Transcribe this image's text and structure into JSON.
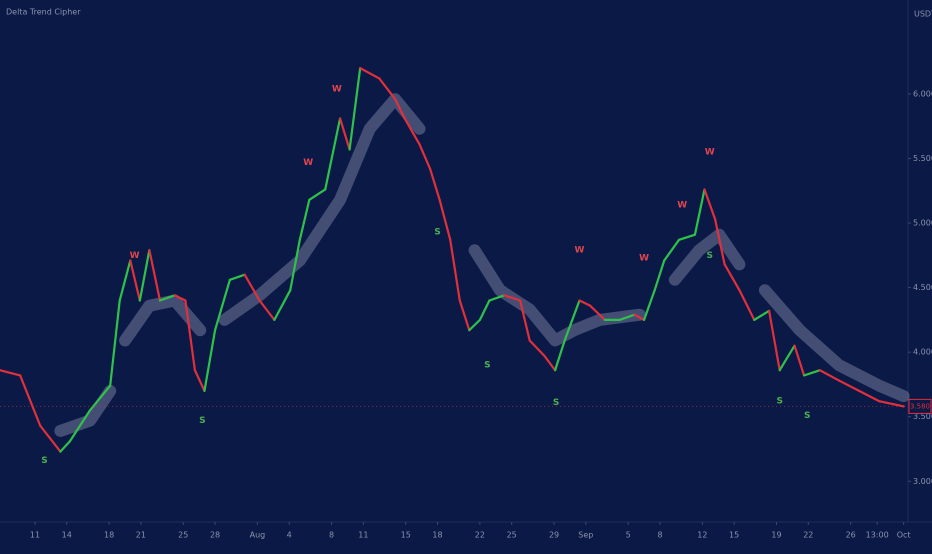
{
  "chart_data": {
    "type": "line",
    "title": "Delta Trend Cipher",
    "unit_label": "USDT",
    "x": [
      6.7,
      8.6,
      10.5,
      12.4,
      13.3,
      15.2,
      17.1,
      18.0,
      19.0,
      19.9,
      20.8,
      21.8,
      23.2,
      24.2,
      25.1,
      26.0,
      27.0,
      28.4,
      29.8,
      31.2,
      32.6,
      34.1,
      35.0,
      35.9,
      37.4,
      38.8,
      39.7,
      40.7,
      42.5,
      44.0,
      44.9,
      46.3,
      47.3,
      48.2,
      49.2,
      50.1,
      51.0,
      52.0,
      52.9,
      54.3,
      55.8,
      56.7,
      58.1,
      59.1,
      60.0,
      61.4,
      62.4,
      63.8,
      65.2,
      66.6,
      67.5,
      68.5,
      69.4,
      70.8,
      72.3,
      73.2,
      74.2,
      75.1,
      76.5,
      77.9,
      79.3,
      80.3,
      81.7,
      82.6,
      84.1,
      85.9,
      87.8,
      89.7,
      92.0
    ],
    "values": [
      3.86,
      3.82,
      3.43,
      3.23,
      3.31,
      3.55,
      3.74,
      4.4,
      4.71,
      4.4,
      4.79,
      4.4,
      4.44,
      4.4,
      3.86,
      3.7,
      4.17,
      4.56,
      4.6,
      4.4,
      4.25,
      4.48,
      4.87,
      5.18,
      5.26,
      5.81,
      5.57,
      6.2,
      6.12,
      5.96,
      5.81,
      5.61,
      5.42,
      5.18,
      4.87,
      4.4,
      4.17,
      4.25,
      4.4,
      4.44,
      4.4,
      4.09,
      3.97,
      3.86,
      4.09,
      4.4,
      4.36,
      4.25,
      4.25,
      4.29,
      4.25,
      4.48,
      4.71,
      4.87,
      4.91,
      5.26,
      5.03,
      4.68,
      4.48,
      4.25,
      4.32,
      3.86,
      4.05,
      3.82,
      3.86,
      3.78,
      3.7,
      3.62,
      3.58
    ],
    "up_color": "#2fc24a",
    "down_color": "#e0303c",
    "ribbon": {
      "color": "#8a90ad",
      "x": [
        12.4,
        15.2,
        17.1,
        null,
        18.5,
        20.8,
        23.2,
        25.6,
        null,
        27.9,
        31.2,
        35.0,
        38.8,
        41.6,
        44.0,
        46.3,
        null,
        51.5,
        53.9,
        56.7,
        59.1,
        60.9,
        63.3,
        67.1,
        null,
        70.4,
        72.7,
        74.6,
        76.5,
        null,
        78.9,
        82.2,
        85.9,
        89.7,
        92.0
      ],
      "values": [
        3.39,
        3.47,
        3.7,
        null,
        4.09,
        4.36,
        4.4,
        4.17,
        null,
        4.25,
        4.44,
        4.71,
        5.18,
        5.73,
        5.96,
        5.73,
        null,
        4.79,
        4.48,
        4.33,
        4.09,
        4.17,
        4.25,
        4.29,
        null,
        4.56,
        4.79,
        4.91,
        4.68,
        null,
        4.48,
        4.17,
        3.9,
        3.74,
        3.66
      ]
    },
    "signals": [
      {
        "label": "W",
        "x": 19.4,
        "y": 4.75,
        "color": "#e0454f"
      },
      {
        "label": "W",
        "x": 35.8,
        "y": 5.47,
        "color": "#e0454f"
      },
      {
        "label": "W",
        "x": 38.5,
        "y": 6.04,
        "color": "#e0454f"
      },
      {
        "label": "W",
        "x": 61.4,
        "y": 4.79,
        "color": "#e0454f"
      },
      {
        "label": "W",
        "x": 67.5,
        "y": 4.73,
        "color": "#e0454f"
      },
      {
        "label": "W",
        "x": 71.1,
        "y": 5.14,
        "color": "#e0454f"
      },
      {
        "label": "W",
        "x": 73.7,
        "y": 5.55,
        "color": "#e0454f"
      },
      {
        "label": "S",
        "x": 10.9,
        "y": 3.16,
        "color": "#4caf50"
      },
      {
        "label": "S",
        "x": 25.8,
        "y": 3.47,
        "color": "#4caf50"
      },
      {
        "label": "S",
        "x": 48.0,
        "y": 4.93,
        "color": "#4caf50"
      },
      {
        "label": "S",
        "x": 52.7,
        "y": 3.9,
        "color": "#4caf50"
      },
      {
        "label": "S",
        "x": 59.2,
        "y": 3.61,
        "color": "#4caf50"
      },
      {
        "label": "S",
        "x": 73.7,
        "y": 4.75,
        "color": "#4caf50"
      },
      {
        "label": "S",
        "x": 80.3,
        "y": 3.62,
        "color": "#4caf50"
      },
      {
        "label": "S",
        "x": 82.9,
        "y": 3.51,
        "color": "#4caf50"
      }
    ],
    "last_price": {
      "value": 3.58,
      "label": "3.580",
      "color": "#e0303c"
    },
    "xlim": [
      6.7,
      92.6
    ],
    "xticks": [
      {
        "value": 10,
        "label": "11"
      },
      {
        "value": 13,
        "label": "14"
      },
      {
        "value": 17,
        "label": "18"
      },
      {
        "value": 20,
        "label": "21"
      },
      {
        "value": 24,
        "label": "25"
      },
      {
        "value": 27,
        "label": "28"
      },
      {
        "value": 31,
        "label": "Aug"
      },
      {
        "value": 34,
        "label": "4"
      },
      {
        "value": 38,
        "label": "8"
      },
      {
        "value": 41,
        "label": "11"
      },
      {
        "value": 45,
        "label": "15"
      },
      {
        "value": 48,
        "label": "18"
      },
      {
        "value": 52,
        "label": "22"
      },
      {
        "value": 55,
        "label": "25"
      },
      {
        "value": 59,
        "label": "29"
      },
      {
        "value": 62,
        "label": "Sep"
      },
      {
        "value": 66,
        "label": "5"
      },
      {
        "value": 69,
        "label": "8"
      },
      {
        "value": 73,
        "label": "12"
      },
      {
        "value": 76,
        "label": "15"
      },
      {
        "value": 80,
        "label": "19"
      },
      {
        "value": 83,
        "label": "22"
      },
      {
        "value": 87,
        "label": "26"
      },
      {
        "value": 89.5,
        "label": "13:00"
      },
      {
        "value": 92,
        "label": "Oct"
      }
    ],
    "ylim": [
      2.7,
      6.65
    ],
    "yticks": [
      {
        "value": 3,
        "label": "3.000"
      },
      {
        "value": 3.5,
        "label": "3.500"
      },
      {
        "value": 4,
        "label": "4.000"
      },
      {
        "value": 4.5,
        "label": "4.500"
      },
      {
        "value": 5,
        "label": "5.000"
      },
      {
        "value": 5.5,
        "label": "5.500"
      },
      {
        "value": 6,
        "label": "6.000"
      }
    ],
    "grid": false
  }
}
